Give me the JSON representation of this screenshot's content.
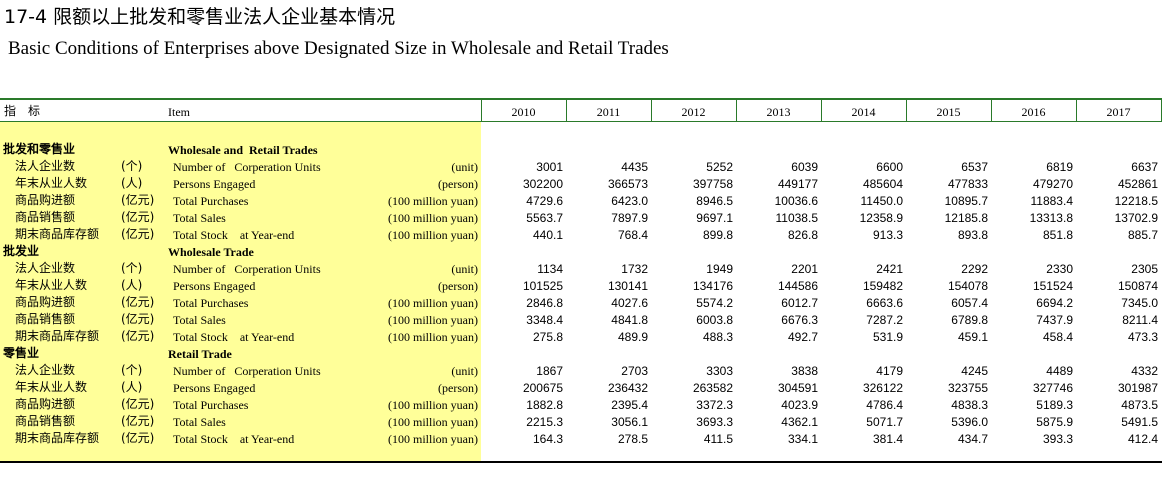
{
  "header": {
    "title": "17-4 限额以上批发和零售业法人企业基本情况",
    "subtitle": "Basic Conditions of Enterprises above Designated Size in Wholesale and Retail Trades"
  },
  "table": {
    "columns": {
      "indicator": "指　标",
      "item": "Item",
      "years": [
        "2010",
        "2011",
        "2012",
        "2013",
        "2014",
        "2015",
        "2016",
        "2017"
      ]
    },
    "sections": [
      {
        "name_cn": "批发和零售业",
        "name_en": "Wholesale and  Retail Trades",
        "rows": [
          {
            "cn": "法人企业数",
            "unit_cn": "(个)",
            "en": "Number of   Corperation Units",
            "unit_en": "(unit)",
            "values": [
              "3001",
              "4435",
              "5252",
              "6039",
              "6600",
              "6537",
              "6819",
              "6637"
            ]
          },
          {
            "cn": "年末从业人数",
            "unit_cn": "(人)",
            "en": "Persons Engaged",
            "unit_en": "(person)",
            "values": [
              "302200",
              "366573",
              "397758",
              "449177",
              "485604",
              "477833",
              "479270",
              "452861"
            ]
          },
          {
            "cn": "商品购进额",
            "unit_cn": "(亿元)",
            "en": "Total Purchases",
            "unit_en": "(100 million yuan)",
            "values": [
              "4729.6",
              "6423.0",
              "8946.5",
              "10036.6",
              "11450.0",
              "10895.7",
              "11883.4",
              "12218.5"
            ]
          },
          {
            "cn": "商品销售额",
            "unit_cn": "(亿元)",
            "en": "Total Sales",
            "unit_en": "(100 million yuan)",
            "values": [
              "5563.7",
              "7897.9",
              "9697.1",
              "11038.5",
              "12358.9",
              "12185.8",
              "13313.8",
              "13702.9"
            ]
          },
          {
            "cn": "期末商品库存额",
            "unit_cn": "(亿元)",
            "en": "Total Stock    at Year-end",
            "unit_en": "(100 million yuan)",
            "values": [
              "440.1",
              "768.4",
              "899.8",
              "826.8",
              "913.3",
              "893.8",
              "851.8",
              "885.7"
            ]
          }
        ]
      },
      {
        "name_cn": "批发业",
        "name_en": "Wholesale Trade",
        "rows": [
          {
            "cn": "法人企业数",
            "unit_cn": "(个)",
            "en": "Number of   Corperation Units",
            "unit_en": "(unit)",
            "values": [
              "1134",
              "1732",
              "1949",
              "2201",
              "2421",
              "2292",
              "2330",
              "2305"
            ]
          },
          {
            "cn": "年末从业人数",
            "unit_cn": "(人)",
            "en": "Persons Engaged",
            "unit_en": "(person)",
            "values": [
              "101525",
              "130141",
              "134176",
              "144586",
              "159482",
              "154078",
              "151524",
              "150874"
            ]
          },
          {
            "cn": "商品购进额",
            "unit_cn": "(亿元)",
            "en": "Total Purchases",
            "unit_en": "(100 million yuan)",
            "values": [
              "2846.8",
              "4027.6",
              "5574.2",
              "6012.7",
              "6663.6",
              "6057.4",
              "6694.2",
              "7345.0"
            ]
          },
          {
            "cn": "商品销售额",
            "unit_cn": "(亿元)",
            "en": "Total Sales",
            "unit_en": "(100 million yuan)",
            "values": [
              "3348.4",
              "4841.8",
              "6003.8",
              "6676.3",
              "7287.2",
              "6789.8",
              "7437.9",
              "8211.4"
            ]
          },
          {
            "cn": "期末商品库存额",
            "unit_cn": "(亿元)",
            "en": "Total Stock    at Year-end",
            "unit_en": "(100 million yuan)",
            "values": [
              "275.8",
              "489.9",
              "488.3",
              "492.7",
              "531.9",
              "459.1",
              "458.4",
              "473.3"
            ]
          }
        ]
      },
      {
        "name_cn": "零售业",
        "name_en": "Retail Trade",
        "rows": [
          {
            "cn": "法人企业数",
            "unit_cn": "(个)",
            "en": "Number of   Corperation Units",
            "unit_en": "(unit)",
            "values": [
              "1867",
              "2703",
              "3303",
              "3838",
              "4179",
              "4245",
              "4489",
              "4332"
            ]
          },
          {
            "cn": "年末从业人数",
            "unit_cn": "(人)",
            "en": "Persons Engaged",
            "unit_en": "(person)",
            "values": [
              "200675",
              "236432",
              "263582",
              "304591",
              "326122",
              "323755",
              "327746",
              "301987"
            ]
          },
          {
            "cn": "商品购进额",
            "unit_cn": "(亿元)",
            "en": "Total Purchases",
            "unit_en": "(100 million yuan)",
            "values": [
              "1882.8",
              "2395.4",
              "3372.3",
              "4023.9",
              "4786.4",
              "4838.3",
              "5189.3",
              "4873.5"
            ]
          },
          {
            "cn": "商品销售额",
            "unit_cn": "(亿元)",
            "en": "Total Sales",
            "unit_en": "(100 million yuan)",
            "values": [
              "2215.3",
              "3056.1",
              "3693.3",
              "4362.1",
              "5071.7",
              "5396.0",
              "5875.9",
              "5491.5"
            ]
          },
          {
            "cn": "期末商品库存额",
            "unit_cn": "(亿元)",
            "en": "Total Stock    at Year-end",
            "unit_en": "(100 million yuan)",
            "values": [
              "164.3",
              "278.5",
              "411.5",
              "334.1",
              "381.4",
              "434.7",
              "393.3",
              "412.4"
            ]
          }
        ]
      }
    ]
  }
}
